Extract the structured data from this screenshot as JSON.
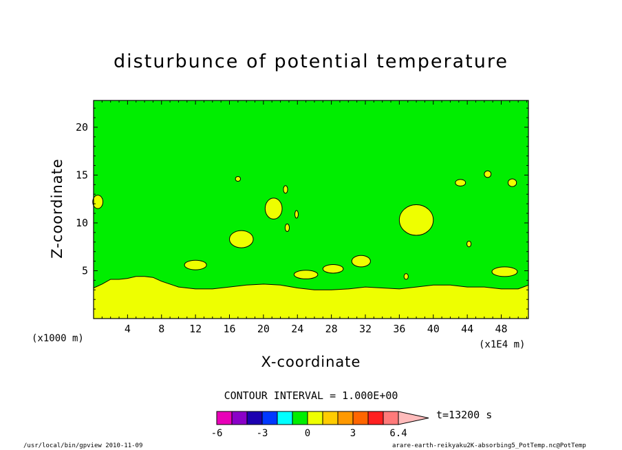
{
  "chart_data": {
    "type": "contour",
    "title": "disturbunce of potential temperature",
    "xlabel": "X-coordinate",
    "ylabel": "Z-coordinate",
    "x_unit_left": "(x1000 m)",
    "x_unit_right": "(x1E4 m)",
    "xlim": [
      0,
      51.2
    ],
    "ylim": [
      0,
      22.8
    ],
    "x_ticks": [
      4,
      8,
      12,
      16,
      20,
      24,
      28,
      32,
      36,
      40,
      44,
      48
    ],
    "y_ticks": [
      5,
      10,
      15,
      20
    ],
    "contour_interval": "CONTOUR INTERVAL = 1.000E+00",
    "time_label": "t=13200 s",
    "background_level_color": "#00ee00",
    "low_layer": {
      "color": "#eeff00",
      "x": [
        0,
        1,
        2,
        3,
        4,
        5,
        6,
        7,
        8,
        10,
        12,
        14,
        16,
        18,
        20,
        22,
        24,
        26,
        28,
        30,
        32,
        34,
        36,
        38,
        40,
        42,
        44,
        46,
        48,
        50,
        51.2
      ],
      "top_z": [
        3.2,
        3.6,
        4.1,
        4.1,
        4.2,
        4.4,
        4.4,
        4.3,
        3.9,
        3.3,
        3.1,
        3.1,
        3.3,
        3.5,
        3.6,
        3.5,
        3.2,
        3.0,
        3.0,
        3.1,
        3.3,
        3.2,
        3.1,
        3.3,
        3.5,
        3.5,
        3.3,
        3.3,
        3.1,
        3.1,
        3.5
      ]
    },
    "positive_blobs": [
      {
        "cx": 21.2,
        "cz": 11.5,
        "rx": 1.0,
        "rz": 1.1
      },
      {
        "cx": 17.4,
        "cz": 8.3,
        "rx": 1.4,
        "rz": 0.9
      },
      {
        "cx": 12.0,
        "cz": 5.6,
        "rx": 1.3,
        "rz": 0.5
      },
      {
        "cx": 25.0,
        "cz": 4.6,
        "rx": 1.4,
        "rz": 0.45
      },
      {
        "cx": 28.2,
        "cz": 5.2,
        "rx": 1.2,
        "rz": 0.45
      },
      {
        "cx": 31.5,
        "cz": 6.0,
        "rx": 1.1,
        "rz": 0.6
      },
      {
        "cx": 38.0,
        "cz": 10.3,
        "rx": 2.0,
        "rz": 1.6
      },
      {
        "cx": 48.4,
        "cz": 4.9,
        "rx": 1.5,
        "rz": 0.5
      },
      {
        "cx": 43.2,
        "cz": 14.2,
        "rx": 0.6,
        "rz": 0.35
      },
      {
        "cx": 46.4,
        "cz": 15.1,
        "rx": 0.4,
        "rz": 0.35
      },
      {
        "cx": 49.3,
        "cz": 14.2,
        "rx": 0.5,
        "rz": 0.4
      },
      {
        "cx": 22.6,
        "cz": 13.5,
        "rx": 0.25,
        "rz": 0.4
      },
      {
        "cx": 23.9,
        "cz": 10.9,
        "rx": 0.2,
        "rz": 0.4
      },
      {
        "cx": 22.8,
        "cz": 9.5,
        "rx": 0.25,
        "rz": 0.4
      },
      {
        "cx": 17.0,
        "cz": 14.6,
        "rx": 0.3,
        "rz": 0.25
      },
      {
        "cx": 44.2,
        "cz": 7.8,
        "rx": 0.25,
        "rz": 0.3
      },
      {
        "cx": 36.8,
        "cz": 4.4,
        "rx": 0.25,
        "rz": 0.3
      },
      {
        "cx": 0.5,
        "cz": 12.2,
        "rx": 0.6,
        "rz": 0.7
      }
    ],
    "colorbar": {
      "colors": [
        "#e800b8",
        "#8a00c8",
        "#1c00b0",
        "#0038ff",
        "#00ffff",
        "#00ee00",
        "#eeff00",
        "#ffcc00",
        "#ff9900",
        "#ff6600",
        "#ff2020",
        "#ff7a7a",
        "#ffbbbb"
      ],
      "tick_labels": [
        "-6",
        "-3",
        "0",
        "3",
        "6.4"
      ]
    }
  },
  "footer": {
    "left": "/usr/local/bin/gpview  2010-11-09",
    "right": "arare-earth-reikyaku2K-absorbing5_PotTemp.nc@PotTemp"
  }
}
